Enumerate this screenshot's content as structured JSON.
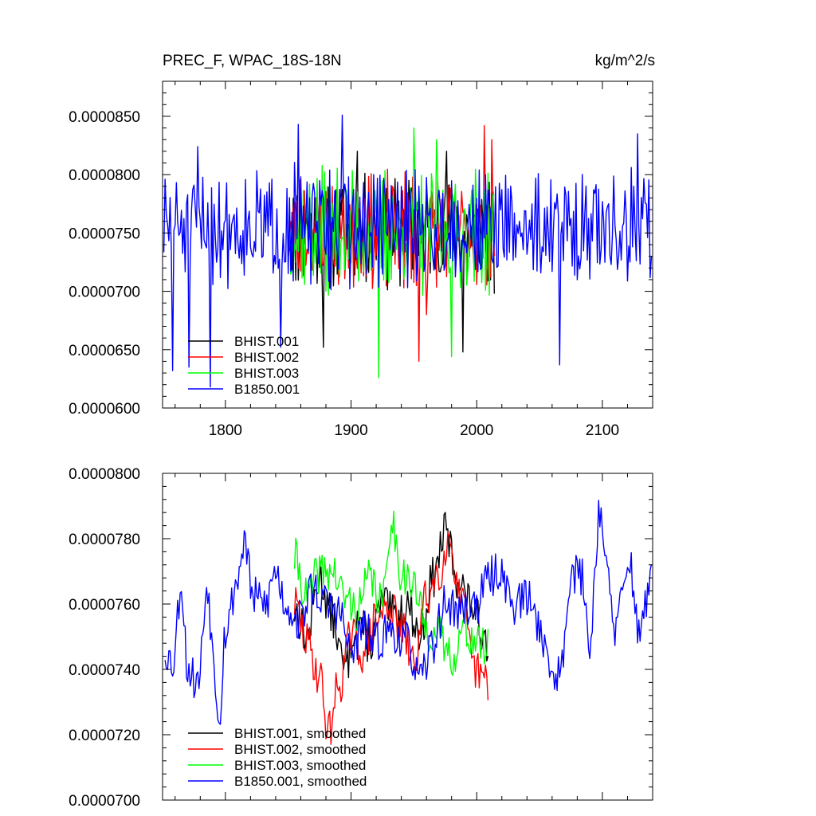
{
  "colors": {
    "black": "#000000",
    "red": "#ff0000",
    "green": "#00ff00",
    "blue": "#0000ff"
  },
  "chart_data": [
    {
      "type": "line",
      "title": "PREC_F, WPAC_18S-18N",
      "units": "kg/m^2/s",
      "xlim": [
        1750,
        2140
      ],
      "ylim": [
        6e-05,
        8.8e-05
      ],
      "xticks": [
        1800,
        1900,
        2000,
        2100
      ],
      "xtick_labels": [
        "1800",
        "1900",
        "2000",
        "2100"
      ],
      "yticks": [
        6e-05,
        6.5e-05,
        7e-05,
        7.5e-05,
        8e-05,
        8.5e-05
      ],
      "ytick_labels": [
        "0.0000600",
        "0.0000650",
        "0.0000700",
        "0.0000750",
        "0.0000800",
        "0.0000850"
      ],
      "legend_position": "bottom-left",
      "series": [
        {
          "name": "BHIST.001",
          "color": "#000000",
          "x_start": 1850,
          "x_end": 2014,
          "mean": 7.52e-05,
          "amp": 4.2e-06,
          "seed": 11,
          "key_points": [
            [
              1878,
              6.52e-05
            ],
            [
              1905,
              8.2e-05
            ],
            [
              1976,
              8.2e-05
            ],
            [
              1989,
              6.48e-05
            ],
            [
              2014,
              6.98e-05
            ]
          ]
        },
        {
          "name": "BHIST.002",
          "color": "#ff0000",
          "x_start": 1850,
          "x_end": 2014,
          "mean": 7.52e-05,
          "amp": 4.2e-06,
          "seed": 23,
          "key_points": [
            [
              1954,
              6.4e-05
            ],
            [
              2006,
              8.42e-05
            ],
            [
              2012,
              8.3e-05
            ],
            [
              1960,
              6.8e-05
            ]
          ]
        },
        {
          "name": "BHIST.003",
          "color": "#00ff00",
          "x_start": 1850,
          "x_end": 2014,
          "mean": 7.52e-05,
          "amp": 4.5e-06,
          "seed": 37,
          "key_points": [
            [
              1922,
              6.26e-05
            ],
            [
              1950,
              8.4e-05
            ],
            [
              1968,
              8.3e-05
            ],
            [
              1980,
              6.44e-05
            ]
          ]
        },
        {
          "name": "B1850.001",
          "color": "#0000ff",
          "x_start": 1751,
          "x_end": 2139,
          "mean": 7.55e-05,
          "amp": 4.2e-06,
          "seed": 51,
          "key_points": [
            [
              1758,
              6.32e-05
            ],
            [
              1771,
              6.35e-05
            ],
            [
              1778,
              8.24e-05
            ],
            [
              1788,
              6.18e-05
            ],
            [
              1844,
              6.52e-05
            ],
            [
              1858,
              8.43e-05
            ],
            [
              1893,
              8.51e-05
            ],
            [
              2066,
              6.37e-05
            ],
            [
              2128,
              8.35e-05
            ]
          ]
        }
      ]
    },
    {
      "type": "line",
      "title": "",
      "xlim": [
        1750,
        2140
      ],
      "ylim": [
        7e-05,
        8e-05
      ],
      "xticks": [
        1800,
        1900,
        2000,
        2100
      ],
      "xtick_labels": [],
      "yticks": [
        7e-05,
        7.2e-05,
        7.4e-05,
        7.6e-05,
        7.8e-05,
        8e-05
      ],
      "ytick_labels": [
        "0.0000700",
        "0.0000720",
        "0.0000740",
        "0.0000760",
        "0.0000780",
        "0.0000800"
      ],
      "legend_position": "bottom-left",
      "series": [
        {
          "name": "BHIST.001, smoothed",
          "color": "#000000",
          "x_start": 1855,
          "x_end": 2009,
          "seed": 13,
          "anchors": [
            [
              1855,
              7.58e-05
            ],
            [
              1865,
              7.5e-05
            ],
            [
              1875,
              7.68e-05
            ],
            [
              1885,
              7.56e-05
            ],
            [
              1895,
              7.4e-05
            ],
            [
              1905,
              7.56e-05
            ],
            [
              1915,
              7.48e-05
            ],
            [
              1925,
              7.6e-05
            ],
            [
              1935,
              7.56e-05
            ],
            [
              1945,
              7.6e-05
            ],
            [
              1955,
              7.5e-05
            ],
            [
              1965,
              7.68e-05
            ],
            [
              1975,
              7.82e-05
            ],
            [
              1985,
              7.68e-05
            ],
            [
              1995,
              7.6e-05
            ],
            [
              2005,
              7.52e-05
            ],
            [
              2009,
              7.48e-05
            ]
          ]
        },
        {
          "name": "BHIST.002, smoothed",
          "color": "#ff0000",
          "x_start": 1855,
          "x_end": 2009,
          "seed": 29,
          "anchors": [
            [
              1855,
              7.6e-05
            ],
            [
              1865,
              7.48e-05
            ],
            [
              1875,
              7.38e-05
            ],
            [
              1882,
              7.21e-05
            ],
            [
              1890,
              7.35e-05
            ],
            [
              1900,
              7.5e-05
            ],
            [
              1910,
              7.45e-05
            ],
            [
              1920,
              7.55e-05
            ],
            [
              1930,
              7.6e-05
            ],
            [
              1940,
              7.52e-05
            ],
            [
              1950,
              7.42e-05
            ],
            [
              1960,
              7.62e-05
            ],
            [
              1970,
              7.7e-05
            ],
            [
              1978,
              7.8e-05
            ],
            [
              1988,
              7.6e-05
            ],
            [
              1998,
              7.4e-05
            ],
            [
              2008,
              7.36e-05
            ]
          ]
        },
        {
          "name": "BHIST.003, smoothed",
          "color": "#00ff00",
          "x_start": 1855,
          "x_end": 2009,
          "seed": 41,
          "anchors": [
            [
              1855,
              7.74e-05
            ],
            [
              1865,
              7.62e-05
            ],
            [
              1875,
              7.7e-05
            ],
            [
              1885,
              7.7e-05
            ],
            [
              1895,
              7.62e-05
            ],
            [
              1905,
              7.58e-05
            ],
            [
              1915,
              7.68e-05
            ],
            [
              1925,
              7.6e-05
            ],
            [
              1932,
              7.86e-05
            ],
            [
              1940,
              7.7e-05
            ],
            [
              1950,
              7.65e-05
            ],
            [
              1960,
              7.52e-05
            ],
            [
              1970,
              7.5e-05
            ],
            [
              1980,
              7.44e-05
            ],
            [
              1990,
              7.52e-05
            ],
            [
              2000,
              7.48e-05
            ],
            [
              2009,
              7.46e-05
            ]
          ]
        },
        {
          "name": "B1850.001, smoothed",
          "color": "#0000ff",
          "x_start": 1752,
          "x_end": 2139,
          "seed": 53,
          "anchors": [
            [
              1752,
              7.46e-05
            ],
            [
              1758,
              7.42e-05
            ],
            [
              1765,
              7.66e-05
            ],
            [
              1770,
              7.4e-05
            ],
            [
              1778,
              7.36e-05
            ],
            [
              1786,
              7.66e-05
            ],
            [
              1790,
              7.45e-05
            ],
            [
              1795,
              7.26e-05
            ],
            [
              1800,
              7.52e-05
            ],
            [
              1810,
              7.68e-05
            ],
            [
              1815,
              7.8e-05
            ],
            [
              1822,
              7.62e-05
            ],
            [
              1832,
              7.6e-05
            ],
            [
              1840,
              7.7e-05
            ],
            [
              1848,
              7.6e-05
            ],
            [
              1858,
              7.55e-05
            ],
            [
              1870,
              7.65e-05
            ],
            [
              1880,
              7.6e-05
            ],
            [
              1890,
              7.58e-05
            ],
            [
              1900,
              7.45e-05
            ],
            [
              1910,
              7.52e-05
            ],
            [
              1920,
              7.48e-05
            ],
            [
              1930,
              7.52e-05
            ],
            [
              1945,
              7.48e-05
            ],
            [
              1955,
              7.36e-05
            ],
            [
              1965,
              7.48e-05
            ],
            [
              1975,
              7.6e-05
            ],
            [
              1985,
              7.58e-05
            ],
            [
              2000,
              7.6e-05
            ],
            [
              2010,
              7.68e-05
            ],
            [
              2018,
              7.7e-05
            ],
            [
              2030,
              7.6e-05
            ],
            [
              2040,
              7.62e-05
            ],
            [
              2050,
              7.54e-05
            ],
            [
              2058,
              7.4e-05
            ],
            [
              2066,
              7.38e-05
            ],
            [
              2075,
              7.7e-05
            ],
            [
              2084,
              7.68e-05
            ],
            [
              2090,
              7.48e-05
            ],
            [
              2098,
              7.9e-05
            ],
            [
              2104,
              7.68e-05
            ],
            [
              2110,
              7.52e-05
            ],
            [
              2118,
              7.65e-05
            ],
            [
              2122,
              7.74e-05
            ],
            [
              2128,
              7.52e-05
            ],
            [
              2134,
              7.6e-05
            ],
            [
              2139,
              7.66e-05
            ]
          ]
        }
      ]
    }
  ]
}
